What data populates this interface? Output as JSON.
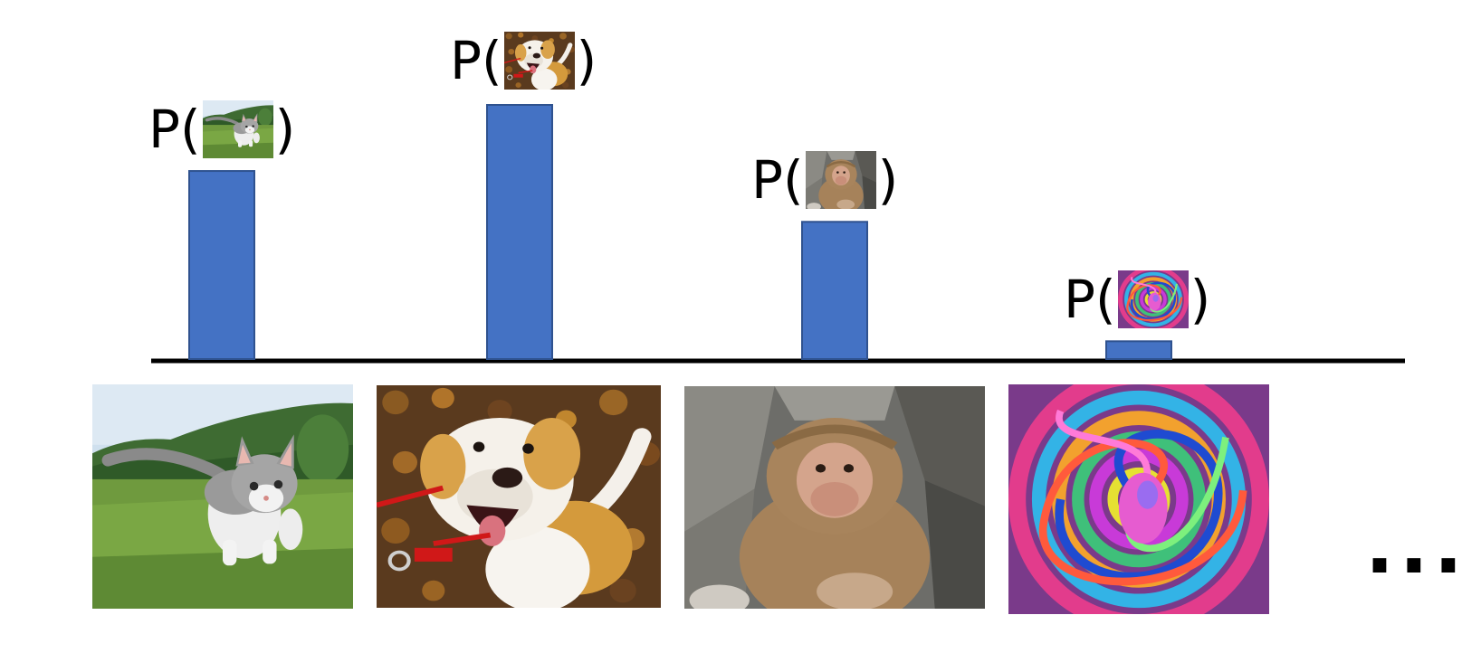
{
  "chart_data": {
    "type": "bar",
    "categories": [
      "cat",
      "dog",
      "monkey",
      "noise"
    ],
    "values": [
      0.74,
      1.0,
      0.54,
      0.07
    ],
    "title": "",
    "xlabel": "",
    "ylabel": "",
    "ylim": [
      0,
      1
    ],
    "grid": false,
    "bar_color": "#4472c4",
    "bar_edge_color": "#2f528f",
    "axis_color": "#000000",
    "bar_label_prefix": "P(",
    "bar_label_suffix": ")"
  },
  "trailing_text": "..."
}
